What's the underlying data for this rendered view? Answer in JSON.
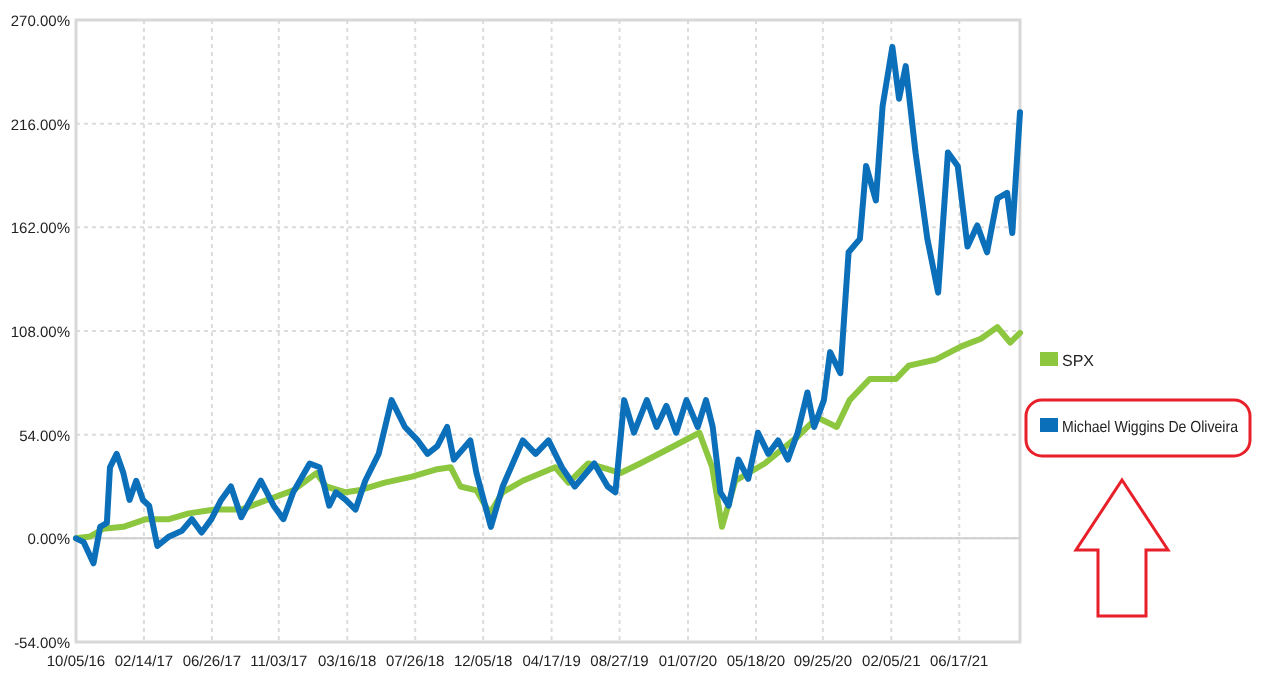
{
  "chart_data": {
    "type": "line",
    "x": [
      "2016-10-05",
      "2016-10-20",
      "2016-11-08",
      "2016-11-21",
      "2016-12-04",
      "2016-12-10",
      "2016-12-23",
      "2017-01-05",
      "2017-01-17",
      "2017-01-30",
      "2017-02-12",
      "2017-02-24",
      "2017-03-12",
      "2017-04-04",
      "2017-04-29",
      "2017-05-18",
      "2017-06-06",
      "2017-06-25",
      "2017-07-14",
      "2017-08-02",
      "2017-08-22",
      "2017-09-29",
      "2017-10-24",
      "2017-11-12",
      "2017-12-01",
      "2018-01-02",
      "2018-01-21",
      "2018-02-09",
      "2018-02-22",
      "2018-03-13",
      "2018-04-01",
      "2018-04-20",
      "2018-05-16",
      "2018-06-10",
      "2018-07-06",
      "2018-07-31",
      "2018-08-19",
      "2018-09-07",
      "2018-09-26",
      "2018-10-09",
      "2018-11-10",
      "2018-11-22",
      "2018-12-20",
      "2019-01-12",
      "2019-02-20",
      "2019-03-17",
      "2019-04-11",
      "2019-05-07",
      "2019-06-01",
      "2019-07-09",
      "2019-08-04",
      "2019-08-19",
      "2019-09-05",
      "2019-09-24",
      "2019-10-19",
      "2019-11-07",
      "2019-11-26",
      "2019-12-15",
      "2020-01-04",
      "2020-01-26",
      "2020-02-11",
      "2020-02-24",
      "2020-03-10",
      "2020-03-26",
      "2020-04-14",
      "2020-05-03",
      "2020-05-22",
      "2020-06-11",
      "2020-06-30",
      "2020-07-19",
      "2020-08-07",
      "2020-08-26",
      "2020-09-08",
      "2020-09-27",
      "2020-10-09",
      "2020-10-29",
      "2020-11-14",
      "2020-12-06",
      "2020-12-18",
      "2021-01-06",
      "2021-01-19",
      "2021-02-07",
      "2021-02-20",
      "2021-03-05",
      "2021-03-24",
      "2021-04-16",
      "2021-05-07",
      "2021-05-26",
      "2021-06-14",
      "2021-07-03",
      "2021-07-22",
      "2021-08-10",
      "2021-08-30",
      "2021-09-18",
      "2021-09-28",
      "2021-10-13"
    ],
    "series": [
      {
        "name": "SPX",
        "color": "#8dc63f",
        "x": [
          "2016-10-05",
          "2016-11-02",
          "2016-11-27",
          "2017-01-05",
          "2017-02-18",
          "2017-04-04",
          "2017-05-12",
          "2017-07-02",
          "2017-08-22",
          "2017-10-11",
          "2017-12-01",
          "2018-01-15",
          "2018-02-03",
          "2018-03-13",
          "2018-04-08",
          "2018-05-28",
          "2018-07-18",
          "2018-09-07",
          "2018-10-03",
          "2018-10-22",
          "2018-11-22",
          "2018-12-18",
          "2019-01-12",
          "2019-02-20",
          "2019-04-24",
          "2019-05-20",
          "2019-06-27",
          "2019-08-04",
          "2019-08-29",
          "2019-10-06",
          "2019-11-26",
          "2020-01-29",
          "2020-02-23",
          "2020-03-13",
          "2020-04-08",
          "2020-06-04",
          "2020-08-07",
          "2020-09-14",
          "2020-10-22",
          "2020-11-16",
          "2020-12-25",
          "2021-02-14",
          "2021-03-11",
          "2021-05-01",
          "2021-06-21",
          "2021-07-29",
          "2021-08-30",
          "2021-09-24",
          "2021-10-13"
        ],
        "values": [
          0,
          1,
          5,
          6,
          10,
          10,
          13,
          15,
          15,
          20,
          25,
          34,
          27,
          24,
          25,
          29,
          32,
          36,
          37,
          27,
          25,
          13,
          24,
          30,
          37,
          29,
          39,
          36,
          34,
          39,
          46,
          55,
          37,
          6,
          30,
          39,
          53,
          63,
          58,
          72,
          83,
          83,
          90,
          93,
          100,
          104,
          110,
          102,
          107
        ]
      },
      {
        "name": "Michael Wiggins De Oliveira",
        "color": "#0b6fba",
        "values": [
          0,
          -2,
          -13,
          6,
          8,
          37,
          44,
          34,
          20,
          30,
          20,
          17,
          -4,
          1,
          4,
          10,
          3,
          10,
          20,
          27,
          11,
          30,
          17,
          10,
          24,
          39,
          37,
          17,
          24,
          20,
          15,
          30,
          44,
          72,
          58,
          51,
          44,
          48,
          58,
          41,
          51,
          34,
          6,
          27,
          51,
          44,
          51,
          37,
          27,
          39,
          27,
          24,
          72,
          55,
          72,
          58,
          69,
          55,
          72,
          58,
          72,
          58,
          24,
          17,
          41,
          31,
          55,
          44,
          51,
          41,
          55,
          76,
          58,
          72,
          97,
          86,
          149,
          156,
          194,
          176,
          225,
          256,
          229,
          246,
          201,
          156,
          128,
          201,
          194,
          152,
          163,
          149,
          177,
          180,
          159,
          222
        ]
      }
    ],
    "xlim": [
      "2016-10-05",
      "2021-10-13"
    ],
    "xticks": [
      {
        "value": "2016-10-05",
        "label": "10/05/16"
      },
      {
        "value": "2017-02-14",
        "label": "02/14/17"
      },
      {
        "value": "2017-06-26",
        "label": "06/26/17"
      },
      {
        "value": "2017-11-03",
        "label": "11/03/17"
      },
      {
        "value": "2018-03-16",
        "label": "03/16/18"
      },
      {
        "value": "2018-07-26",
        "label": "07/26/18"
      },
      {
        "value": "2018-12-05",
        "label": "12/05/18"
      },
      {
        "value": "2019-04-17",
        "label": "04/17/19"
      },
      {
        "value": "2019-08-27",
        "label": "08/27/19"
      },
      {
        "value": "2020-01-07",
        "label": "01/07/20"
      },
      {
        "value": "2020-05-18",
        "label": "05/18/20"
      },
      {
        "value": "2020-09-25",
        "label": "09/25/20"
      },
      {
        "value": "2021-02-05",
        "label": "02/05/21"
      },
      {
        "value": "2021-06-17",
        "label": "06/17/21"
      }
    ],
    "ylim": [
      -54,
      270
    ],
    "yticks": [
      {
        "value": -54,
        "label": "-54.00%"
      },
      {
        "value": 0,
        "label": "0.00%"
      },
      {
        "value": 54,
        "label": "54.00%"
      },
      {
        "value": 108,
        "label": "108.00%"
      },
      {
        "value": 162,
        "label": "162.00%"
      },
      {
        "value": 216,
        "label": "216.00%"
      },
      {
        "value": 270,
        "label": "270.00%"
      }
    ],
    "grid": true,
    "legend": "right",
    "marker": "none",
    "line_style": "solid"
  }
}
